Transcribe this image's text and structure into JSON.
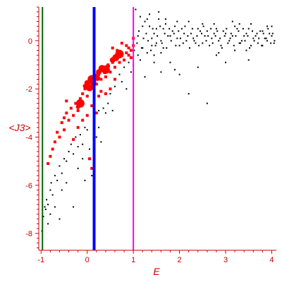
{
  "chart_data": {
    "type": "scatter",
    "title": "",
    "xlabel": "E",
    "ylabel": "<J3>",
    "xlim": [
      -1.05,
      4.1
    ],
    "ylim": [
      -8.7,
      1.4
    ],
    "x_ticks": [
      -1,
      0,
      1,
      2,
      3,
      4
    ],
    "y_ticks": [
      0,
      -2,
      -4,
      -6,
      -8
    ],
    "grid": false,
    "legend": "none",
    "axis_color": "#cc0000",
    "vertical_lines": [
      {
        "x": -0.97,
        "color": "#006400"
      },
      {
        "x": 0.15,
        "color": "#0000ff"
      },
      {
        "x": 1.0,
        "color": "#ff00ff"
      }
    ],
    "series": [
      {
        "color": "#ff0000",
        "marker": "circle-large",
        "points": [
          [
            -0.05,
            -1.88
          ],
          [
            0.0,
            -1.75
          ],
          [
            0.05,
            -1.95
          ],
          [
            0.1,
            -1.6
          ],
          [
            0.18,
            -1.45
          ],
          [
            0.25,
            -1.3
          ],
          [
            0.32,
            -1.15
          ],
          [
            0.4,
            -1.2
          ],
          [
            0.45,
            -1.05
          ],
          [
            0.55,
            -0.8
          ],
          [
            0.62,
            -0.7
          ],
          [
            0.7,
            -0.55
          ],
          [
            0.38,
            -1.3
          ],
          [
            0.22,
            -1.55
          ],
          [
            0.12,
            -1.7
          ],
          [
            -0.15,
            -2.6
          ],
          [
            -0.2,
            -2.75
          ]
        ]
      },
      {
        "color": "#ff0000",
        "marker": "square-small",
        "points": [
          [
            -0.7,
            -4.2
          ],
          [
            -0.65,
            -3.8
          ],
          [
            -0.55,
            -3.4
          ],
          [
            -0.5,
            -3.7
          ],
          [
            -0.45,
            -3.0
          ],
          [
            -0.4,
            -3.3
          ],
          [
            -0.35,
            -2.8
          ],
          [
            -0.3,
            -3.1
          ],
          [
            -0.25,
            -2.6
          ],
          [
            -0.2,
            -2.9
          ],
          [
            -0.15,
            -2.4
          ],
          [
            -0.1,
            -2.2
          ],
          [
            -0.05,
            -2.0
          ],
          [
            0.0,
            -2.3
          ],
          [
            0.05,
            -1.7
          ],
          [
            0.1,
            -1.9
          ],
          [
            0.15,
            -1.5
          ],
          [
            0.2,
            -1.8
          ],
          [
            0.25,
            -1.4
          ],
          [
            0.3,
            -1.6
          ],
          [
            0.35,
            -1.2
          ],
          [
            0.4,
            -1.5
          ],
          [
            0.45,
            -1.0
          ],
          [
            0.5,
            -1.3
          ],
          [
            0.55,
            -0.9
          ],
          [
            0.6,
            -1.1
          ],
          [
            0.65,
            -0.7
          ],
          [
            0.7,
            -0.9
          ],
          [
            0.75,
            -0.6
          ],
          [
            0.8,
            -0.8
          ],
          [
            0.85,
            -0.5
          ],
          [
            0.9,
            -0.3
          ],
          [
            0.95,
            -0.4
          ],
          [
            1.0,
            -0.2
          ],
          [
            -0.8,
            -4.8
          ],
          [
            -0.75,
            -4.5
          ],
          [
            -0.6,
            -4.0
          ],
          [
            -0.3,
            -4.1
          ],
          [
            -0.2,
            -3.6
          ],
          [
            -0.1,
            -3.3
          ],
          [
            0.1,
            -2.7
          ],
          [
            0.25,
            -2.3
          ],
          [
            0.4,
            -2.2
          ],
          [
            0.5,
            -2.0
          ],
          [
            0.2,
            -3.0
          ],
          [
            0.0,
            -3.1
          ],
          [
            -0.45,
            -2.5
          ],
          [
            0.55,
            -0.3
          ],
          [
            0.75,
            -0.1
          ],
          [
            0.85,
            -0.2
          ],
          [
            0.9,
            -0.6
          ],
          [
            0.65,
            -0.4
          ],
          [
            -0.85,
            -5.1
          ],
          [
            0.05,
            -4.9
          ],
          [
            0.1,
            -5.3
          ],
          [
            0.3,
            -2.1
          ],
          [
            0.6,
            -1.6
          ],
          [
            1.0,
            0.1
          ],
          [
            0.95,
            -0.7
          ],
          [
            -0.5,
            -3.2
          ]
        ]
      },
      {
        "color": "#000000",
        "marker": "dot",
        "points": [
          [
            -0.98,
            -7.9
          ],
          [
            -0.95,
            -7.3
          ],
          [
            -0.92,
            -6.9
          ],
          [
            -0.9,
            -7.0
          ],
          [
            -0.88,
            -6.6
          ],
          [
            -0.85,
            -6.8
          ],
          [
            -0.8,
            -6.2
          ],
          [
            -0.78,
            -5.9
          ],
          [
            -0.75,
            -6.4
          ],
          [
            -0.7,
            -5.6
          ],
          [
            -0.65,
            -5.8
          ],
          [
            -0.6,
            -5.2
          ],
          [
            -0.55,
            -5.5
          ],
          [
            -0.5,
            -4.9
          ],
          [
            -0.45,
            -5.0
          ],
          [
            -0.4,
            -4.6
          ],
          [
            -0.35,
            -4.3
          ],
          [
            -0.3,
            -4.7
          ],
          [
            -0.25,
            -4.0
          ],
          [
            -0.2,
            -4.4
          ],
          [
            -0.15,
            -3.9
          ],
          [
            -0.1,
            -4.3
          ],
          [
            -0.05,
            -3.6
          ],
          [
            0.0,
            -3.7
          ],
          [
            -0.7,
            -6.9
          ],
          [
            -0.6,
            -7.4
          ],
          [
            -0.55,
            -6.2
          ],
          [
            -0.85,
            -7.6
          ],
          [
            -0.8,
            -7.2
          ],
          [
            -0.3,
            -6.9
          ],
          [
            0.35,
            -2.8
          ],
          [
            0.45,
            -2.6
          ],
          [
            0.6,
            -1.9
          ],
          [
            0.7,
            -1.4
          ],
          [
            0.8,
            -1.1
          ],
          [
            0.9,
            -0.9
          ],
          [
            1.1,
            -0.6
          ],
          [
            1.2,
            -0.3
          ],
          [
            1.3,
            -0.5
          ],
          [
            1.4,
            -0.2
          ],
          [
            1.5,
            -0.1
          ],
          [
            1.6,
            -0.5
          ],
          [
            1.8,
            -0.9
          ],
          [
            1.9,
            -1.2
          ],
          [
            2.2,
            -2.2
          ],
          [
            2.4,
            -1.1
          ],
          [
            2.6,
            -2.6
          ],
          [
            2.8,
            -0.6
          ],
          [
            3.0,
            -0.9
          ],
          [
            3.2,
            -0.4
          ],
          [
            3.5,
            -0.8
          ],
          [
            3.8,
            -0.2
          ],
          [
            1.05,
            1.3
          ],
          [
            1.15,
            1.0
          ],
          [
            1.25,
            0.8
          ],
          [
            1.35,
            0.6
          ],
          [
            1.45,
            0.3
          ],
          [
            1.55,
            0.9
          ],
          [
            1.65,
            0.5
          ],
          [
            1.75,
            0.2
          ],
          [
            1.85,
            0.4
          ],
          [
            1.95,
            0.1
          ],
          [
            2.05,
            0.5
          ],
          [
            2.15,
            0.0
          ],
          [
            2.25,
            0.3
          ],
          [
            2.35,
            -0.1
          ],
          [
            2.45,
            0.4
          ],
          [
            2.55,
            0.2
          ],
          [
            2.65,
            -0.2
          ],
          [
            2.75,
            0.3
          ],
          [
            2.85,
            0.0
          ],
          [
            2.95,
            0.4
          ],
          [
            3.05,
            -0.1
          ],
          [
            3.15,
            0.2
          ],
          [
            3.25,
            0.5
          ],
          [
            3.35,
            0.0
          ],
          [
            3.45,
            0.3
          ],
          [
            3.55,
            -0.2
          ],
          [
            3.65,
            0.2
          ],
          [
            3.75,
            0.4
          ],
          [
            3.85,
            0.1
          ],
          [
            3.95,
            0.3
          ],
          [
            4.05,
            -0.1
          ],
          [
            1.1,
            0.2
          ],
          [
            1.2,
            0.6
          ],
          [
            1.3,
            0.9
          ],
          [
            1.4,
            0.1
          ],
          [
            1.5,
            0.5
          ],
          [
            1.6,
            0.0
          ],
          [
            1.7,
            0.7
          ],
          [
            1.8,
            0.2
          ],
          [
            1.9,
            0.6
          ],
          [
            2.0,
            -0.2
          ],
          [
            2.1,
            0.3
          ],
          [
            2.2,
            0.8
          ],
          [
            2.3,
            0.1
          ],
          [
            2.4,
            0.5
          ],
          [
            2.5,
            -0.1
          ],
          [
            2.6,
            0.4
          ],
          [
            2.7,
            0.1
          ],
          [
            2.8,
            0.5
          ],
          [
            2.9,
            -0.2
          ],
          [
            3.0,
            0.3
          ],
          [
            3.1,
            0.1
          ],
          [
            3.2,
            0.6
          ],
          [
            3.3,
            -0.1
          ],
          [
            3.4,
            0.2
          ],
          [
            3.5,
            0.5
          ],
          [
            3.6,
            0.1
          ],
          [
            3.7,
            -0.1
          ],
          [
            3.8,
            0.4
          ],
          [
            3.9,
            0.0
          ],
          [
            4.0,
            0.2
          ],
          [
            1.02,
            -0.4
          ],
          [
            1.08,
            -0.1
          ],
          [
            1.12,
            0.4
          ],
          [
            1.18,
            -0.3
          ],
          [
            1.22,
            0.1
          ],
          [
            1.28,
            0.3
          ],
          [
            1.32,
            0.0
          ],
          [
            1.38,
            -0.4
          ],
          [
            1.42,
            0.5
          ],
          [
            1.48,
            -0.2
          ],
          [
            1.52,
            0.2
          ],
          [
            1.58,
            0.6
          ],
          [
            1.62,
            -0.1
          ],
          [
            1.68,
            0.3
          ],
          [
            1.72,
            -0.3
          ],
          [
            1.78,
            0.5
          ],
          [
            1.82,
            0.0
          ],
          [
            1.88,
            0.3
          ],
          [
            1.92,
            -0.2
          ],
          [
            1.98,
            0.4
          ],
          [
            2.02,
            0.1
          ],
          [
            2.08,
            -0.1
          ],
          [
            2.12,
            0.6
          ],
          [
            2.18,
            0.2
          ],
          [
            2.22,
            -0.3
          ],
          [
            2.28,
            0.5
          ],
          [
            2.32,
            0.0
          ],
          [
            2.38,
            0.2
          ],
          [
            2.42,
            -0.2
          ],
          [
            2.48,
            0.3
          ],
          [
            2.52,
            0.6
          ],
          [
            2.58,
            0.0
          ],
          [
            2.62,
            0.2
          ],
          [
            2.68,
            0.5
          ],
          [
            2.72,
            -0.1
          ],
          [
            2.78,
            0.2
          ],
          [
            2.82,
            0.4
          ],
          [
            2.88,
            0.1
          ],
          [
            2.92,
            -0.3
          ],
          [
            2.98,
            0.2
          ],
          [
            3.02,
            0.5
          ],
          [
            3.08,
            0.0
          ],
          [
            3.12,
            0.3
          ],
          [
            3.18,
            -0.2
          ],
          [
            3.22,
            0.2
          ],
          [
            3.28,
            0.4
          ],
          [
            3.32,
            -0.1
          ],
          [
            3.38,
            0.5
          ],
          [
            3.42,
            0.0
          ],
          [
            3.48,
            0.2
          ],
          [
            3.52,
            -0.3
          ],
          [
            3.58,
            0.4
          ],
          [
            3.62,
            0.0
          ],
          [
            3.68,
            0.3
          ],
          [
            3.72,
            0.1
          ],
          [
            3.78,
            -0.2
          ],
          [
            3.82,
            0.3
          ],
          [
            3.88,
            0.1
          ],
          [
            3.92,
            0.5
          ],
          [
            3.98,
            -0.1
          ],
          [
            4.02,
            0.3
          ],
          [
            4.06,
            0.0
          ],
          [
            0.25,
            -2.9
          ],
          [
            0.15,
            -3.4
          ],
          [
            0.5,
            -2.2
          ],
          [
            0.75,
            -1.7
          ],
          [
            0.95,
            -1.3
          ],
          [
            0.2,
            -4.0
          ],
          [
            0.05,
            -4.5
          ],
          [
            -0.1,
            -4.9
          ],
          [
            0.1,
            -5.6
          ],
          [
            0.55,
            -2.9
          ],
          [
            0.85,
            -2.0
          ],
          [
            1.0,
            -1.0
          ],
          [
            1.15,
            -0.8
          ],
          [
            1.25,
            -1.5
          ],
          [
            1.45,
            -0.9
          ],
          [
            1.6,
            -1.3
          ],
          [
            2.0,
            -1.4
          ],
          [
            -0.45,
            -5.9
          ],
          [
            -0.2,
            -5.3
          ],
          [
            -0.05,
            -5.8
          ],
          [
            0.25,
            -3.6
          ],
          [
            0.4,
            -3.0
          ],
          [
            0.3,
            -4.2
          ],
          [
            1.7,
            0.9
          ],
          [
            2.5,
            0.7
          ],
          [
            3.3,
            0.7
          ],
          [
            3.9,
            0.6
          ],
          [
            1.35,
            1.1
          ],
          [
            1.55,
            1.2
          ],
          [
            1.95,
            0.8
          ],
          [
            2.75,
            0.7
          ],
          [
            3.15,
            0.8
          ],
          [
            3.55,
            0.7
          ],
          [
            4.0,
            0.6
          ],
          [
            2.85,
            -0.5
          ],
          [
            3.45,
            -0.4
          ],
          [
            1.45,
            -0.6
          ],
          [
            1.65,
            -0.3
          ]
        ]
      }
    ]
  }
}
